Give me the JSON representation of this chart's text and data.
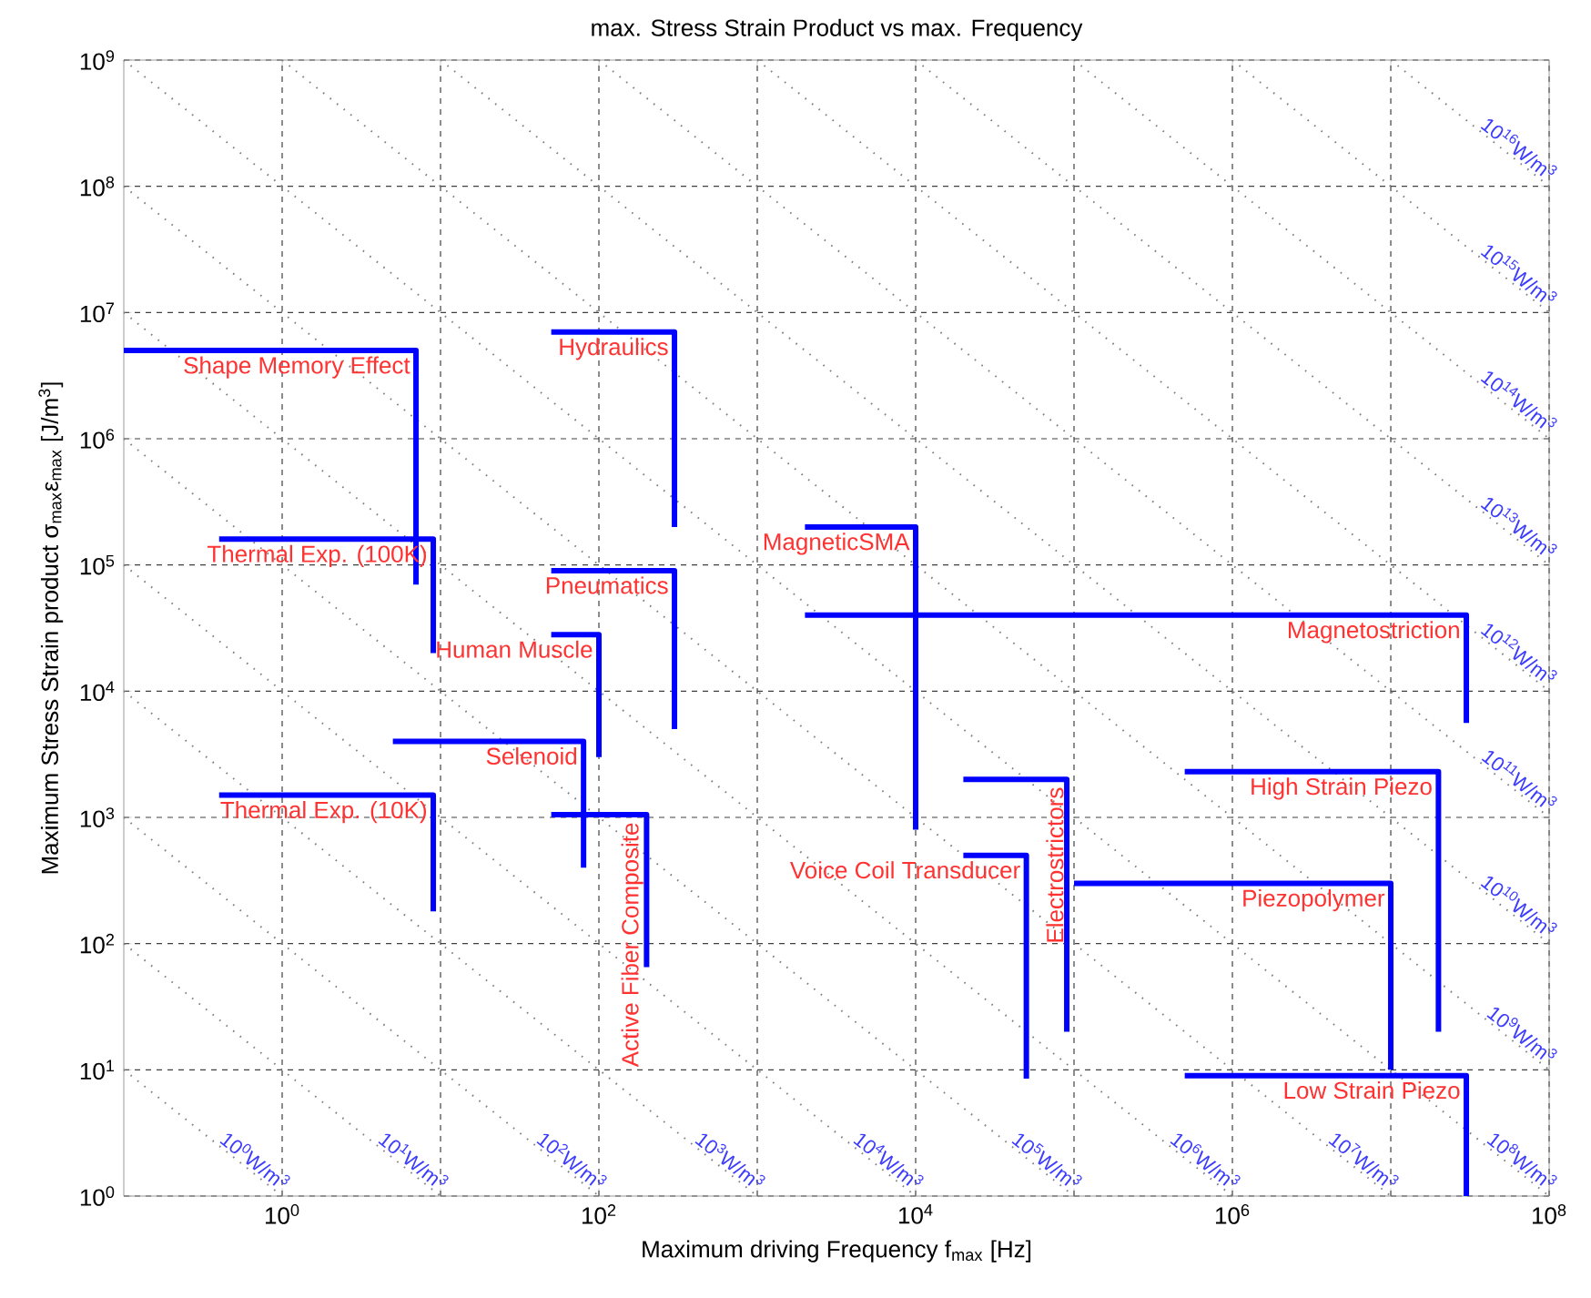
{
  "chart_data": {
    "type": "line",
    "title": "max. Stress Strain Product vs max. Frequency",
    "xlabel": "Maximum driving Frequency f$_{max}$ [Hz]",
    "ylabel": "Maximum Stress  Strain product σ$_{max}$ε$_{max}$ [J/m$^{3}$]",
    "log": "xy",
    "grid": true,
    "xlim": [
      0.1,
      100000000.0
    ],
    "ylim": [
      1,
      1000000000.0
    ],
    "xticks": [
      {
        "value": 1,
        "label": "10$^{0}$"
      },
      {
        "value": 10,
        "label": null
      },
      {
        "value": 100,
        "label": "10$^{2}$"
      },
      {
        "value": 1000,
        "label": null
      },
      {
        "value": 10000,
        "label": "10$^{4}$"
      },
      {
        "value": 100000,
        "label": null
      },
      {
        "value": 1000000,
        "label": "10$^{6}$"
      },
      {
        "value": 10000000,
        "label": null
      },
      {
        "value": 100000000,
        "label": "10$^{8}$"
      }
    ],
    "yticks": [
      {
        "value": 1,
        "label": "10$^{0}$"
      },
      {
        "value": 10,
        "label": "10$^{1}$"
      },
      {
        "value": 100,
        "label": "10$^{2}$"
      },
      {
        "value": 1000,
        "label": "10$^{3}$"
      },
      {
        "value": 10000,
        "label": "10$^{4}$"
      },
      {
        "value": 100000,
        "label": "10$^{5}$"
      },
      {
        "value": 1000000,
        "label": "10$^{6}$"
      },
      {
        "value": 10000000,
        "label": "10$^{7}$"
      },
      {
        "value": 100000000,
        "label": "10$^{8}$"
      },
      {
        "value": 1000000000,
        "label": "10$^{9}$"
      }
    ],
    "series": [
      {
        "name": "10$^{0}$W/m$^{3}$",
        "color": "#808080",
        "line_style": "dotted",
        "x": [
          0.1,
          1
        ],
        "values": [
          10,
          1
        ]
      },
      {
        "name": "10$^{1}$W/m$^{3}$",
        "color": "#808080",
        "line_style": "dotted",
        "x": [
          0.1,
          10
        ],
        "values": [
          100,
          1
        ]
      },
      {
        "name": "10$^{2}$W/m$^{3}$",
        "color": "#808080",
        "line_style": "dotted",
        "x": [
          0.1,
          100
        ],
        "values": [
          1000,
          1
        ]
      },
      {
        "name": "10$^{3}$W/m$^{3}$",
        "color": "#808080",
        "line_style": "dotted",
        "x": [
          0.1,
          1000
        ],
        "values": [
          10000,
          1
        ]
      },
      {
        "name": "10$^{4}$W/m$^{3}$",
        "color": "#808080",
        "line_style": "dotted",
        "x": [
          0.1,
          10000
        ],
        "values": [
          100000,
          1
        ]
      },
      {
        "name": "10$^{5}$W/m$^{3}$",
        "color": "#808080",
        "line_style": "dotted",
        "x": [
          0.1,
          100000
        ],
        "values": [
          1000000,
          1
        ]
      },
      {
        "name": "10$^{6}$W/m$^{3}$",
        "color": "#808080",
        "line_style": "dotted",
        "x": [
          0.1,
          1000000
        ],
        "values": [
          10000000,
          1
        ]
      },
      {
        "name": "10$^{7}$W/m$^{3}$",
        "color": "#808080",
        "line_style": "dotted",
        "x": [
          0.1,
          10000000
        ],
        "values": [
          100000000,
          1
        ]
      },
      {
        "name": "10$^{8}$W/m$^{3}$",
        "color": "#808080",
        "line_style": "dotted",
        "x": [
          0.1,
          100000000
        ],
        "values": [
          1000000000,
          1
        ]
      },
      {
        "name": "10$^{9}$W/m$^{3}$",
        "color": "#808080",
        "line_style": "dotted",
        "x": [
          1,
          100000000
        ],
        "values": [
          1000000000,
          10
        ]
      },
      {
        "name": "10$^{10}$W/m$^{3}$",
        "color": "#808080",
        "line_style": "dotted",
        "x": [
          10,
          100000000
        ],
        "values": [
          1000000000,
          100
        ]
      },
      {
        "name": "10$^{11}$W/m$^{3}$",
        "color": "#808080",
        "line_style": "dotted",
        "x": [
          100,
          100000000
        ],
        "values": [
          1000000000,
          1000
        ]
      },
      {
        "name": "10$^{12}$W/m$^{3}$",
        "color": "#808080",
        "line_style": "dotted",
        "x": [
          1000,
          100000000
        ],
        "values": [
          1000000000,
          10000
        ]
      },
      {
        "name": "10$^{13}$W/m$^{3}$",
        "color": "#808080",
        "line_style": "dotted",
        "x": [
          10000,
          100000000
        ],
        "values": [
          1000000000,
          100000
        ]
      },
      {
        "name": "10$^{14}$W/m$^{3}$",
        "color": "#808080",
        "line_style": "dotted",
        "x": [
          100000,
          100000000
        ],
        "values": [
          1000000000,
          1000000
        ]
      },
      {
        "name": "10$^{15}$W/m$^{3}$",
        "color": "#808080",
        "line_style": "dotted",
        "x": [
          1000000,
          100000000
        ],
        "values": [
          1000000000,
          10000000
        ]
      },
      {
        "name": "10$^{16}$W/m$^{3}$",
        "color": "#808080",
        "line_style": "dotted",
        "x": [
          10000000,
          100000000
        ],
        "values": [
          1000000000,
          100000000
        ]
      },
      {
        "name": "Shape Memory Effect",
        "color": "#0000ff",
        "line_style": "solid",
        "x": [
          0.1,
          7,
          7
        ],
        "values": [
          5000000,
          5000000,
          70000
        ]
      },
      {
        "name": "Thermal Exp. (100K)",
        "color": "#0000ff",
        "line_style": "solid",
        "x": [
          0.4,
          9,
          9
        ],
        "values": [
          160000,
          160000,
          20000
        ]
      },
      {
        "name": "Hydraulics",
        "color": "#0000ff",
        "line_style": "solid",
        "x": [
          50,
          300,
          300
        ],
        "values": [
          7000000,
          7000000,
          200000
        ]
      },
      {
        "name": "Pneumatics",
        "color": "#0000ff",
        "line_style": "solid",
        "x": [
          50,
          300,
          300
        ],
        "values": [
          90000,
          90000,
          5000
        ]
      },
      {
        "name": "Human Muscle",
        "color": "#0000ff",
        "line_style": "solid",
        "x": [
          50,
          100,
          100
        ],
        "values": [
          28000,
          28000,
          3000
        ]
      },
      {
        "name": "Selenoid",
        "color": "#0000ff",
        "line_style": "solid",
        "x": [
          5,
          80,
          80
        ],
        "values": [
          4000,
          4000,
          400
        ]
      },
      {
        "name": "Thermal Exp. (10K)",
        "color": "#0000ff",
        "line_style": "solid",
        "x": [
          0.4,
          9,
          9
        ],
        "values": [
          1500,
          1500,
          180
        ]
      },
      {
        "name": "Active Fiber Composite",
        "color": "#0000ff",
        "line_style": "solid",
        "x": [
          50,
          200,
          200
        ],
        "values": [
          1050,
          1050,
          65
        ]
      },
      {
        "name": "MagneticSMA",
        "color": "#0000ff",
        "line_style": "solid",
        "x": [
          2000,
          10000,
          10000
        ],
        "values": [
          200000,
          200000,
          800
        ]
      },
      {
        "name": "Magnetostriction",
        "color": "#0000ff",
        "line_style": "solid",
        "x": [
          2000,
          30000000,
          30000000
        ],
        "values": [
          40000,
          40000,
          5600
        ]
      },
      {
        "name": "Electrostrictors",
        "color": "#0000ff",
        "line_style": "solid",
        "x": [
          20000,
          90000,
          90000
        ],
        "values": [
          2000,
          2000,
          20
        ]
      },
      {
        "name": "Voice Coil Transducer",
        "color": "#0000ff",
        "line_style": "solid",
        "x": [
          20000,
          50000,
          50000
        ],
        "values": [
          500,
          500,
          8.5
        ]
      },
      {
        "name": "High Strain Piezo",
        "color": "#0000ff",
        "line_style": "solid",
        "x": [
          500000,
          20000000,
          20000000
        ],
        "values": [
          2300,
          2300,
          20
        ]
      },
      {
        "name": "Piezopolymer",
        "color": "#0000ff",
        "line_style": "solid",
        "x": [
          100000,
          10000000,
          10000000
        ],
        "values": [
          300,
          300,
          10
        ]
      },
      {
        "name": "Low Strain Piezo",
        "color": "#0000ff",
        "line_style": "solid",
        "x": [
          500000,
          30000000,
          30000000
        ],
        "values": [
          9,
          9,
          1
        ]
      }
    ]
  }
}
